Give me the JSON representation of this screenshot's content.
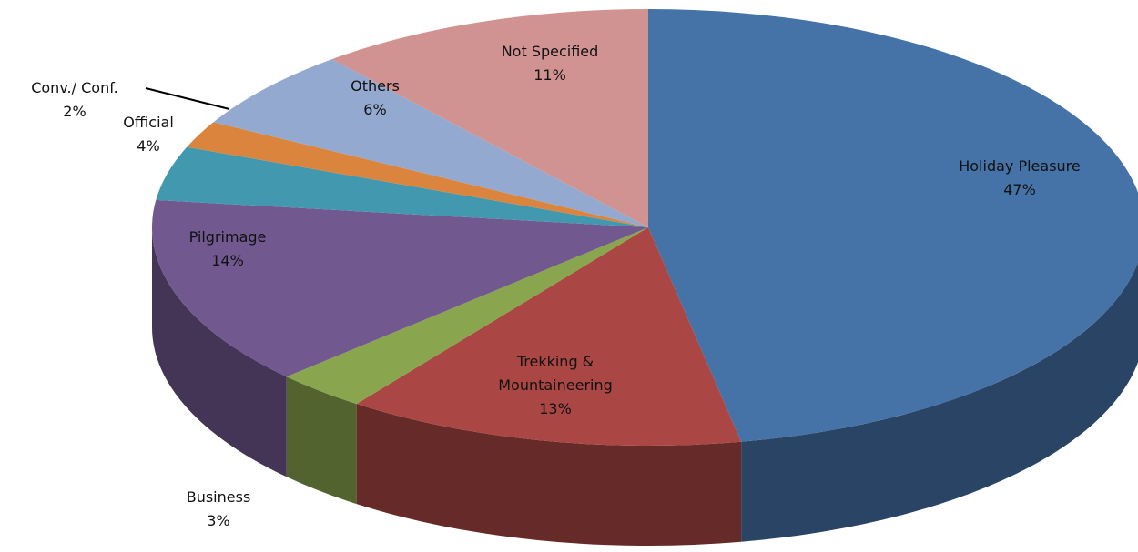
{
  "chart_data": {
    "type": "pie3d",
    "categories": [
      "Holiday Pleasure",
      "Trekking & Mountaineering",
      "Business",
      "Pilgrimage",
      "Official",
      "Conv./ Conf.",
      "Others",
      "Not Specified"
    ],
    "values": [
      47,
      13,
      3,
      14,
      4,
      2,
      6,
      11
    ],
    "value_labels": [
      "47%",
      "13%",
      "3%",
      "14%",
      "4%",
      "2%",
      "6%",
      "11%"
    ],
    "colors": [
      "#4572a7",
      "#aa4643",
      "#89a54e",
      "#71588f",
      "#4198af",
      "#db843d",
      "#93a9cf",
      "#d19392"
    ]
  }
}
